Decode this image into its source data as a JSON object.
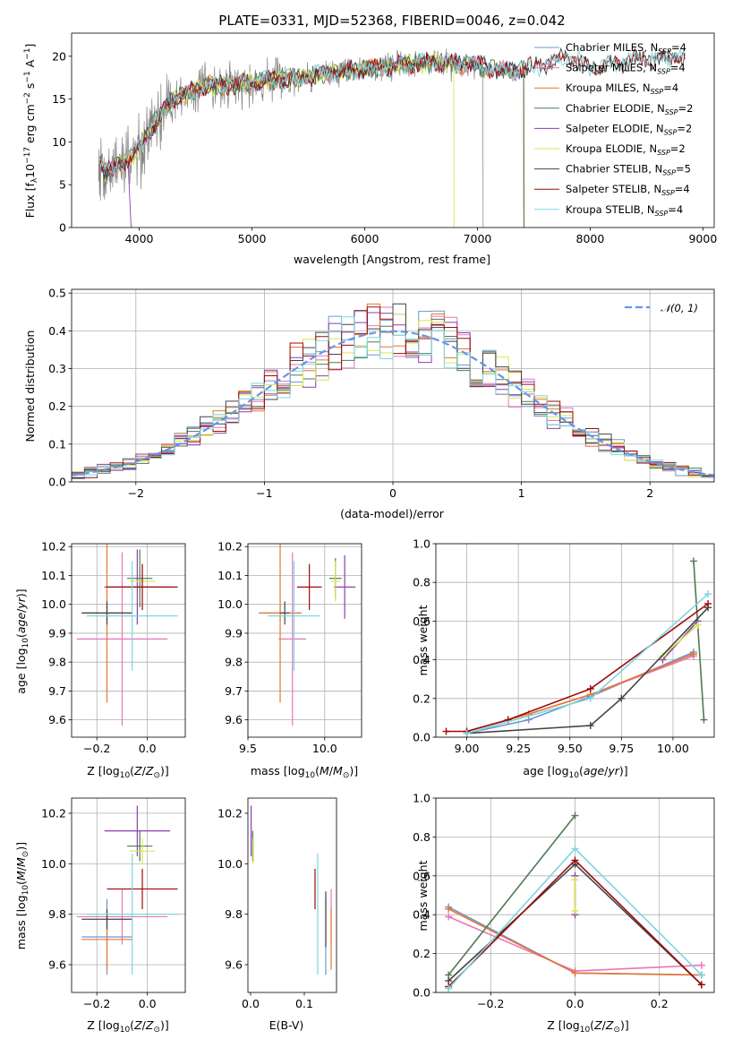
{
  "colors": {
    "chabrier_miles": "#6a98d2",
    "salpeter_miles": "#e875b9",
    "kroupa_miles": "#e6772f",
    "chabrier_elodie": "#4f7a56",
    "salpeter_elodie": "#8b3fb0",
    "kroupa_elodie": "#dbe550",
    "chabrier_stelib": "#444444",
    "salpeter_stelib": "#9c0a0a",
    "kroupa_stelib": "#7fd5dd",
    "data_spectrum": "#808080",
    "normal_curve": "#6495ed"
  },
  "chart_data": [
    {
      "id": "spectrum",
      "type": "line",
      "title": "PLATE=0331, MJD=52368, FIBERID=0046, z=0.042",
      "xlabel": "wavelength [Angstrom, rest frame]",
      "ylabel": "Flux [fλ10⁻¹⁷ erg cm⁻² s⁻¹ A⁻¹]",
      "xlim": [
        3400,
        9100
      ],
      "ylim": [
        0,
        22.7
      ],
      "xticks": [
        "4000",
        "5000",
        "6000",
        "7000",
        "8000",
        "9000"
      ],
      "yticks": [
        "0",
        "5",
        "10",
        "15",
        "20"
      ],
      "grid": false,
      "legend": {
        "placement": "top-right",
        "entries": [
          "Chabrier MILES, N_SSP=4",
          "Salpeter MILES, N_SSP=4",
          "Kroupa MILES, N_SSP=4",
          "Chabrier ELODIE, N_SSP=2",
          "Salpeter ELODIE, N_SSP=2",
          "Kroupa ELODIE, N_SSP=2",
          "Chabrier STELIB, N_SSP=5",
          "Salpeter STELIB, N_SSP=4",
          "Kroupa STELIB, N_SSP=4"
        ]
      },
      "continuum": {
        "x": [
          3650,
          3700,
          3800,
          3950,
          4100,
          4300,
          4600,
          5000,
          5400,
          5800,
          6200,
          6600,
          7000,
          7200,
          7400,
          7600,
          7800,
          8000,
          8400,
          8800
        ],
        "y": [
          8,
          6.5,
          7,
          8.5,
          11.5,
          15,
          16.5,
          17,
          17.5,
          18.3,
          18.8,
          19.3,
          19,
          18.2,
          18.5,
          19,
          20,
          18.6,
          19.6,
          20
        ]
      },
      "model_cutoffs": {
        "salpeter_elodie": 3950,
        "kroupa_elodie": 6790,
        "kroupa_miles": 7410,
        "chabrier_miles": 7410,
        "salpeter_miles": 7410,
        "chabrier_elodie": 7410,
        "data_end": 7050,
        "stelib_end": 8840
      }
    },
    {
      "id": "residuals",
      "type": "line",
      "xlabel": "(data-model)/error",
      "ylabel": "Normed distribution",
      "xlim": [
        -2.5,
        2.5
      ],
      "ylim": [
        0,
        0.51
      ],
      "xticks": [
        "−2",
        "−1",
        "0",
        "1",
        "2"
      ],
      "yticks": [
        "0.0",
        "0.1",
        "0.2",
        "0.3",
        "0.4",
        "0.5"
      ],
      "grid": true,
      "legend": {
        "placement": "top-right",
        "entries": [
          "𝒩(0, 1)"
        ]
      },
      "bin_width": 0.1
    },
    {
      "id": "age_vs_Z",
      "type": "scatter",
      "xlabel": "Z [log₁₀(Z/Z☉)]",
      "ylabel": "age  [log₁₀(age/yr)]",
      "xlim": [
        -0.3,
        0.15
      ],
      "ylim": [
        9.54,
        10.21
      ],
      "xticks": [
        "−0.2",
        "0.0"
      ],
      "yticks": [
        "9.6",
        "9.7",
        "9.8",
        "9.9",
        "10.0",
        "10.1",
        "10.2"
      ],
      "grid": true,
      "points": [
        {
          "model": "chabrier_miles",
          "x": -0.16,
          "xerr": 0.1,
          "y": 9.97,
          "yerr": 0.03
        },
        {
          "model": "salpeter_miles",
          "x": -0.1,
          "xerr": 0.18,
          "y": 9.88,
          "yerr": 0.3
        },
        {
          "model": "kroupa_miles",
          "x": -0.16,
          "xerr": 0.1,
          "y": 9.97,
          "yerr": 0.31
        },
        {
          "model": "chabrier_elodie",
          "x": -0.03,
          "xerr": 0.05,
          "y": 10.09,
          "yerr": 0.1
        },
        {
          "model": "salpeter_elodie",
          "x": -0.04,
          "xerr": 0.13,
          "y": 10.06,
          "yerr": 0.13
        },
        {
          "model": "kroupa_elodie",
          "x": -0.02,
          "xerr": 0.05,
          "y": 10.08,
          "yerr": 0.06
        },
        {
          "model": "chabrier_stelib",
          "x": -0.16,
          "xerr": 0.1,
          "y": 9.97,
          "yerr": 0.04
        },
        {
          "model": "salpeter_stelib",
          "x": -0.02,
          "xerr": 0.14,
          "y": 10.06,
          "yerr": 0.08
        },
        {
          "model": "kroupa_stelib",
          "x": -0.06,
          "xerr": 0.18,
          "y": 9.96,
          "yerr": 0.19
        }
      ]
    },
    {
      "id": "age_vs_mass",
      "type": "scatter",
      "xlabel": "mass [log₁₀(M/M☉)]",
      "ylabel": "",
      "xlim": [
        9.5,
        10.24
      ],
      "ylim": [
        9.54,
        10.21
      ],
      "xticks": [
        "9.5",
        "10.0"
      ],
      "yticks": [
        "9.6",
        "9.7",
        "9.8",
        "9.9",
        "10.0",
        "10.1",
        "10.2"
      ],
      "grid": true,
      "points": [
        {
          "model": "chabrier_miles",
          "x": 9.71,
          "xerr": 0.14,
          "y": 9.97,
          "yerr": 0.03
        },
        {
          "model": "salpeter_miles",
          "x": 9.79,
          "xerr": 0.09,
          "y": 9.88,
          "yerr": 0.3
        },
        {
          "model": "kroupa_miles",
          "x": 9.71,
          "xerr": 0.13,
          "y": 9.97,
          "yerr": 0.31
        },
        {
          "model": "chabrier_elodie",
          "x": 10.07,
          "xerr": 0.04,
          "y": 10.09,
          "yerr": 0.07
        },
        {
          "model": "salpeter_elodie",
          "x": 10.13,
          "xerr": 0.07,
          "y": 10.06,
          "yerr": 0.11
        },
        {
          "model": "kroupa_elodie",
          "x": 10.07,
          "xerr": 0.03,
          "y": 10.08,
          "yerr": 0.07
        },
        {
          "model": "chabrier_stelib",
          "x": 9.74,
          "xerr": 0.03,
          "y": 9.97,
          "yerr": 0.04
        },
        {
          "model": "salpeter_stelib",
          "x": 9.9,
          "xerr": 0.08,
          "y": 10.06,
          "yerr": 0.08
        },
        {
          "model": "kroupa_stelib",
          "x": 9.8,
          "xerr": 0.17,
          "y": 9.96,
          "yerr": 0.19
        }
      ]
    },
    {
      "id": "weight_vs_age",
      "type": "line",
      "xlabel": "age  [log₁₀(age/yr)]",
      "ylabel": "mass weight",
      "xlim": [
        8.85,
        10.2
      ],
      "ylim": [
        0,
        1
      ],
      "xticks": [
        "9.00",
        "9.25",
        "9.50",
        "9.75",
        "10.00"
      ],
      "yticks": [
        "0.0",
        "0.2",
        "0.4",
        "0.6",
        "0.8",
        "1.0"
      ],
      "grid": true,
      "series": [
        {
          "model": "chabrier_miles",
          "x": [
            9.0,
            9.3,
            9.6,
            10.1
          ],
          "y": [
            0.02,
            0.09,
            0.21,
            0.44
          ]
        },
        {
          "model": "salpeter_miles",
          "x": [
            9.0,
            9.3,
            9.6,
            10.1
          ],
          "y": [
            0.03,
            0.12,
            0.22,
            0.42
          ]
        },
        {
          "model": "kroupa_miles",
          "x": [
            9.0,
            9.3,
            9.6,
            10.1
          ],
          "y": [
            0.03,
            0.12,
            0.22,
            0.43
          ]
        },
        {
          "model": "chabrier_elodie",
          "x": [
            10.1,
            10.15
          ],
          "y": [
            0.91,
            0.09
          ]
        },
        {
          "model": "salpeter_elodie",
          "x": [
            9.95,
            10.12
          ],
          "y": [
            0.4,
            0.6
          ]
        },
        {
          "model": "kroupa_elodie",
          "x": [
            9.95,
            10.12
          ],
          "y": [
            0.42,
            0.58
          ]
        },
        {
          "model": "chabrier_stelib",
          "x": [
            9.0,
            9.6,
            9.75,
            10.17
          ],
          "y": [
            0.02,
            0.06,
            0.2,
            0.67
          ]
        },
        {
          "model": "salpeter_stelib",
          "x": [
            8.9,
            9.0,
            9.2,
            9.6,
            10.17
          ],
          "y": [
            0.03,
            0.03,
            0.09,
            0.25,
            0.69
          ]
        },
        {
          "model": "kroupa_stelib",
          "x": [
            9.0,
            9.6,
            10.17
          ],
          "y": [
            0.02,
            0.2,
            0.74
          ]
        }
      ]
    },
    {
      "id": "mass_vs_Z",
      "type": "scatter",
      "xlabel": "Z [log₁₀(Z/Z☉)]",
      "ylabel": "mass [log₁₀(M/M☉)]",
      "xlim": [
        -0.3,
        0.15
      ],
      "ylim": [
        9.49,
        10.26
      ],
      "xticks": [
        "−0.2",
        "0.0"
      ],
      "yticks": [
        "9.6",
        "9.8",
        "10.0",
        "10.2"
      ],
      "grid": true,
      "points": [
        {
          "model": "chabrier_miles",
          "x": -0.16,
          "xerr": 0.1,
          "y": 9.71,
          "yerr": 0.15
        },
        {
          "model": "salpeter_miles",
          "x": -0.1,
          "xerr": 0.18,
          "y": 9.79,
          "yerr": 0.11
        },
        {
          "model": "kroupa_miles",
          "x": -0.16,
          "xerr": 0.1,
          "y": 9.7,
          "yerr": 0.12
        },
        {
          "model": "chabrier_elodie",
          "x": -0.03,
          "xerr": 0.05,
          "y": 10.07,
          "yerr": 0.06
        },
        {
          "model": "salpeter_elodie",
          "x": -0.04,
          "xerr": 0.13,
          "y": 10.13,
          "yerr": 0.1
        },
        {
          "model": "kroupa_elodie",
          "x": -0.02,
          "xerr": 0.05,
          "y": 10.05,
          "yerr": 0.05
        },
        {
          "model": "chabrier_stelib",
          "x": -0.16,
          "xerr": 0.1,
          "y": 9.78,
          "yerr": 0.04
        },
        {
          "model": "salpeter_stelib",
          "x": -0.02,
          "xerr": 0.14,
          "y": 9.9,
          "yerr": 0.08
        },
        {
          "model": "kroupa_stelib",
          "x": -0.06,
          "xerr": 0.18,
          "y": 9.8,
          "yerr": 0.24
        }
      ]
    },
    {
      "id": "mass_vs_ebv",
      "type": "scatter",
      "xlabel": "E(B-V)",
      "ylabel": "",
      "xlim": [
        -0.005,
        0.16
      ],
      "ylim": [
        9.49,
        10.26
      ],
      "xticks": [
        "0.0",
        "0.1"
      ],
      "yticks": [
        "9.6",
        "9.8",
        "10.0",
        "10.2"
      ],
      "grid": false,
      "points": [
        {
          "model": "chabrier_miles",
          "x": 0.14,
          "y": 9.71,
          "yerr": 0.15
        },
        {
          "model": "salpeter_miles",
          "x": 0.15,
          "y": 9.79,
          "yerr": 0.11
        },
        {
          "model": "kroupa_miles",
          "x": 0.15,
          "y": 9.7,
          "yerr": 0.12
        },
        {
          "model": "chabrier_elodie",
          "x": 0.004,
          "y": 10.07,
          "yerr": 0.06
        },
        {
          "model": "salpeter_elodie",
          "x": 0.001,
          "y": 10.13,
          "yerr": 0.1
        },
        {
          "model": "kroupa_elodie",
          "x": 0.005,
          "y": 10.05,
          "yerr": 0.05
        },
        {
          "model": "chabrier_stelib",
          "x": 0.14,
          "y": 9.78,
          "yerr": 0.11
        },
        {
          "model": "salpeter_stelib",
          "x": 0.12,
          "y": 9.9,
          "yerr": 0.08
        },
        {
          "model": "kroupa_stelib",
          "x": 0.125,
          "y": 9.8,
          "yerr": 0.24
        }
      ]
    },
    {
      "id": "weight_vs_Z",
      "type": "line",
      "xlabel": "Z [log₁₀(Z/Z☉)]",
      "ylabel": "mass weight",
      "xlim": [
        -0.33,
        0.33
      ],
      "ylim": [
        0,
        1
      ],
      "xticks": [
        "−0.2",
        "0.0",
        "0.2"
      ],
      "yticks": [
        "0.0",
        "0.2",
        "0.4",
        "0.6",
        "0.8",
        "1.0"
      ],
      "grid": true,
      "series": [
        {
          "model": "chabrier_miles",
          "x": [
            -0.3,
            0.0,
            0.3
          ],
          "y": [
            0.44,
            0.1,
            0.09
          ]
        },
        {
          "model": "salpeter_miles",
          "x": [
            -0.3,
            0.0,
            0.3
          ],
          "y": [
            0.39,
            0.11,
            0.14
          ]
        },
        {
          "model": "kroupa_miles",
          "x": [
            -0.3,
            0.0,
            0.3
          ],
          "y": [
            0.43,
            0.1,
            0.09
          ]
        },
        {
          "model": "chabrier_elodie",
          "x": [
            -0.3,
            0.0
          ],
          "y": [
            0.09,
            0.91
          ]
        },
        {
          "model": "salpeter_elodie",
          "x": [
            0.0,
            0.0
          ],
          "y": [
            0.4,
            0.6
          ]
        },
        {
          "model": "kroupa_elodie",
          "x": [
            0.0,
            0.0
          ],
          "y": [
            0.42,
            0.58
          ]
        },
        {
          "model": "chabrier_stelib",
          "x": [
            -0.3,
            0.0,
            0.3
          ],
          "y": [
            0.06,
            0.66,
            0.04
          ]
        },
        {
          "model": "salpeter_stelib",
          "x": [
            -0.3,
            0.0,
            0.3
          ],
          "y": [
            0.03,
            0.68,
            0.04
          ]
        },
        {
          "model": "kroupa_stelib",
          "x": [
            -0.3,
            0.0,
            0.3
          ],
          "y": [
            0.02,
            0.74,
            0.09
          ]
        }
      ]
    }
  ]
}
